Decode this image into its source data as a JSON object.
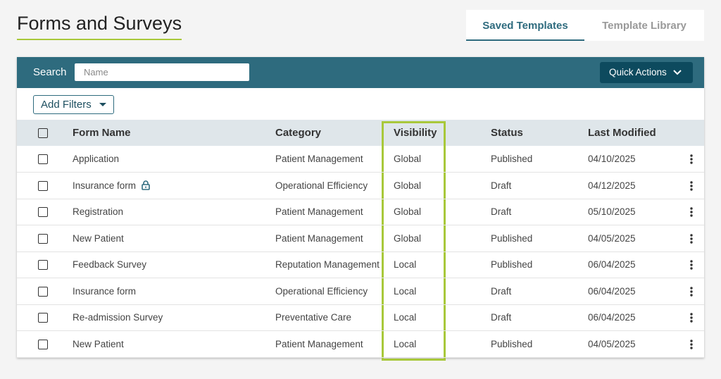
{
  "header": {
    "title": "Forms and Surveys",
    "tabs": [
      "Saved Templates",
      "Template Library"
    ]
  },
  "toolbar": {
    "search_label": "Search",
    "search_placeholder": "Name",
    "quick_actions": "Quick Actions",
    "add_filters": "Add Filters"
  },
  "table": {
    "columns": [
      "Form Name",
      "Category",
      "Visibility",
      "Status",
      "Last Modified"
    ],
    "rows": [
      [
        "Application",
        "Patient Management",
        "Global",
        "Published",
        "04/10/2025"
      ],
      [
        "Insurance form",
        "Operational Efficiency",
        "Global",
        "Draft",
        "04/12/2025"
      ],
      [
        "Registration",
        "Patient Management",
        "Global",
        "Draft",
        "05/10/2025"
      ],
      [
        "New Patient",
        "Patient Management",
        "Global",
        "Published",
        "04/05/2025"
      ],
      [
        "Feedback Survey",
        "Reputation Management",
        "Local",
        "Published",
        "06/04/2025"
      ],
      [
        "Insurance form",
        "Operational Efficiency",
        "Local",
        "Draft",
        "06/04/2025"
      ],
      [
        "Re-admission Survey",
        "Preventative Care",
        "Local",
        "Draft",
        "06/04/2025"
      ],
      [
        "New Patient",
        "Patient Management",
        "Local",
        "Published",
        "04/05/2025"
      ]
    ]
  }
}
